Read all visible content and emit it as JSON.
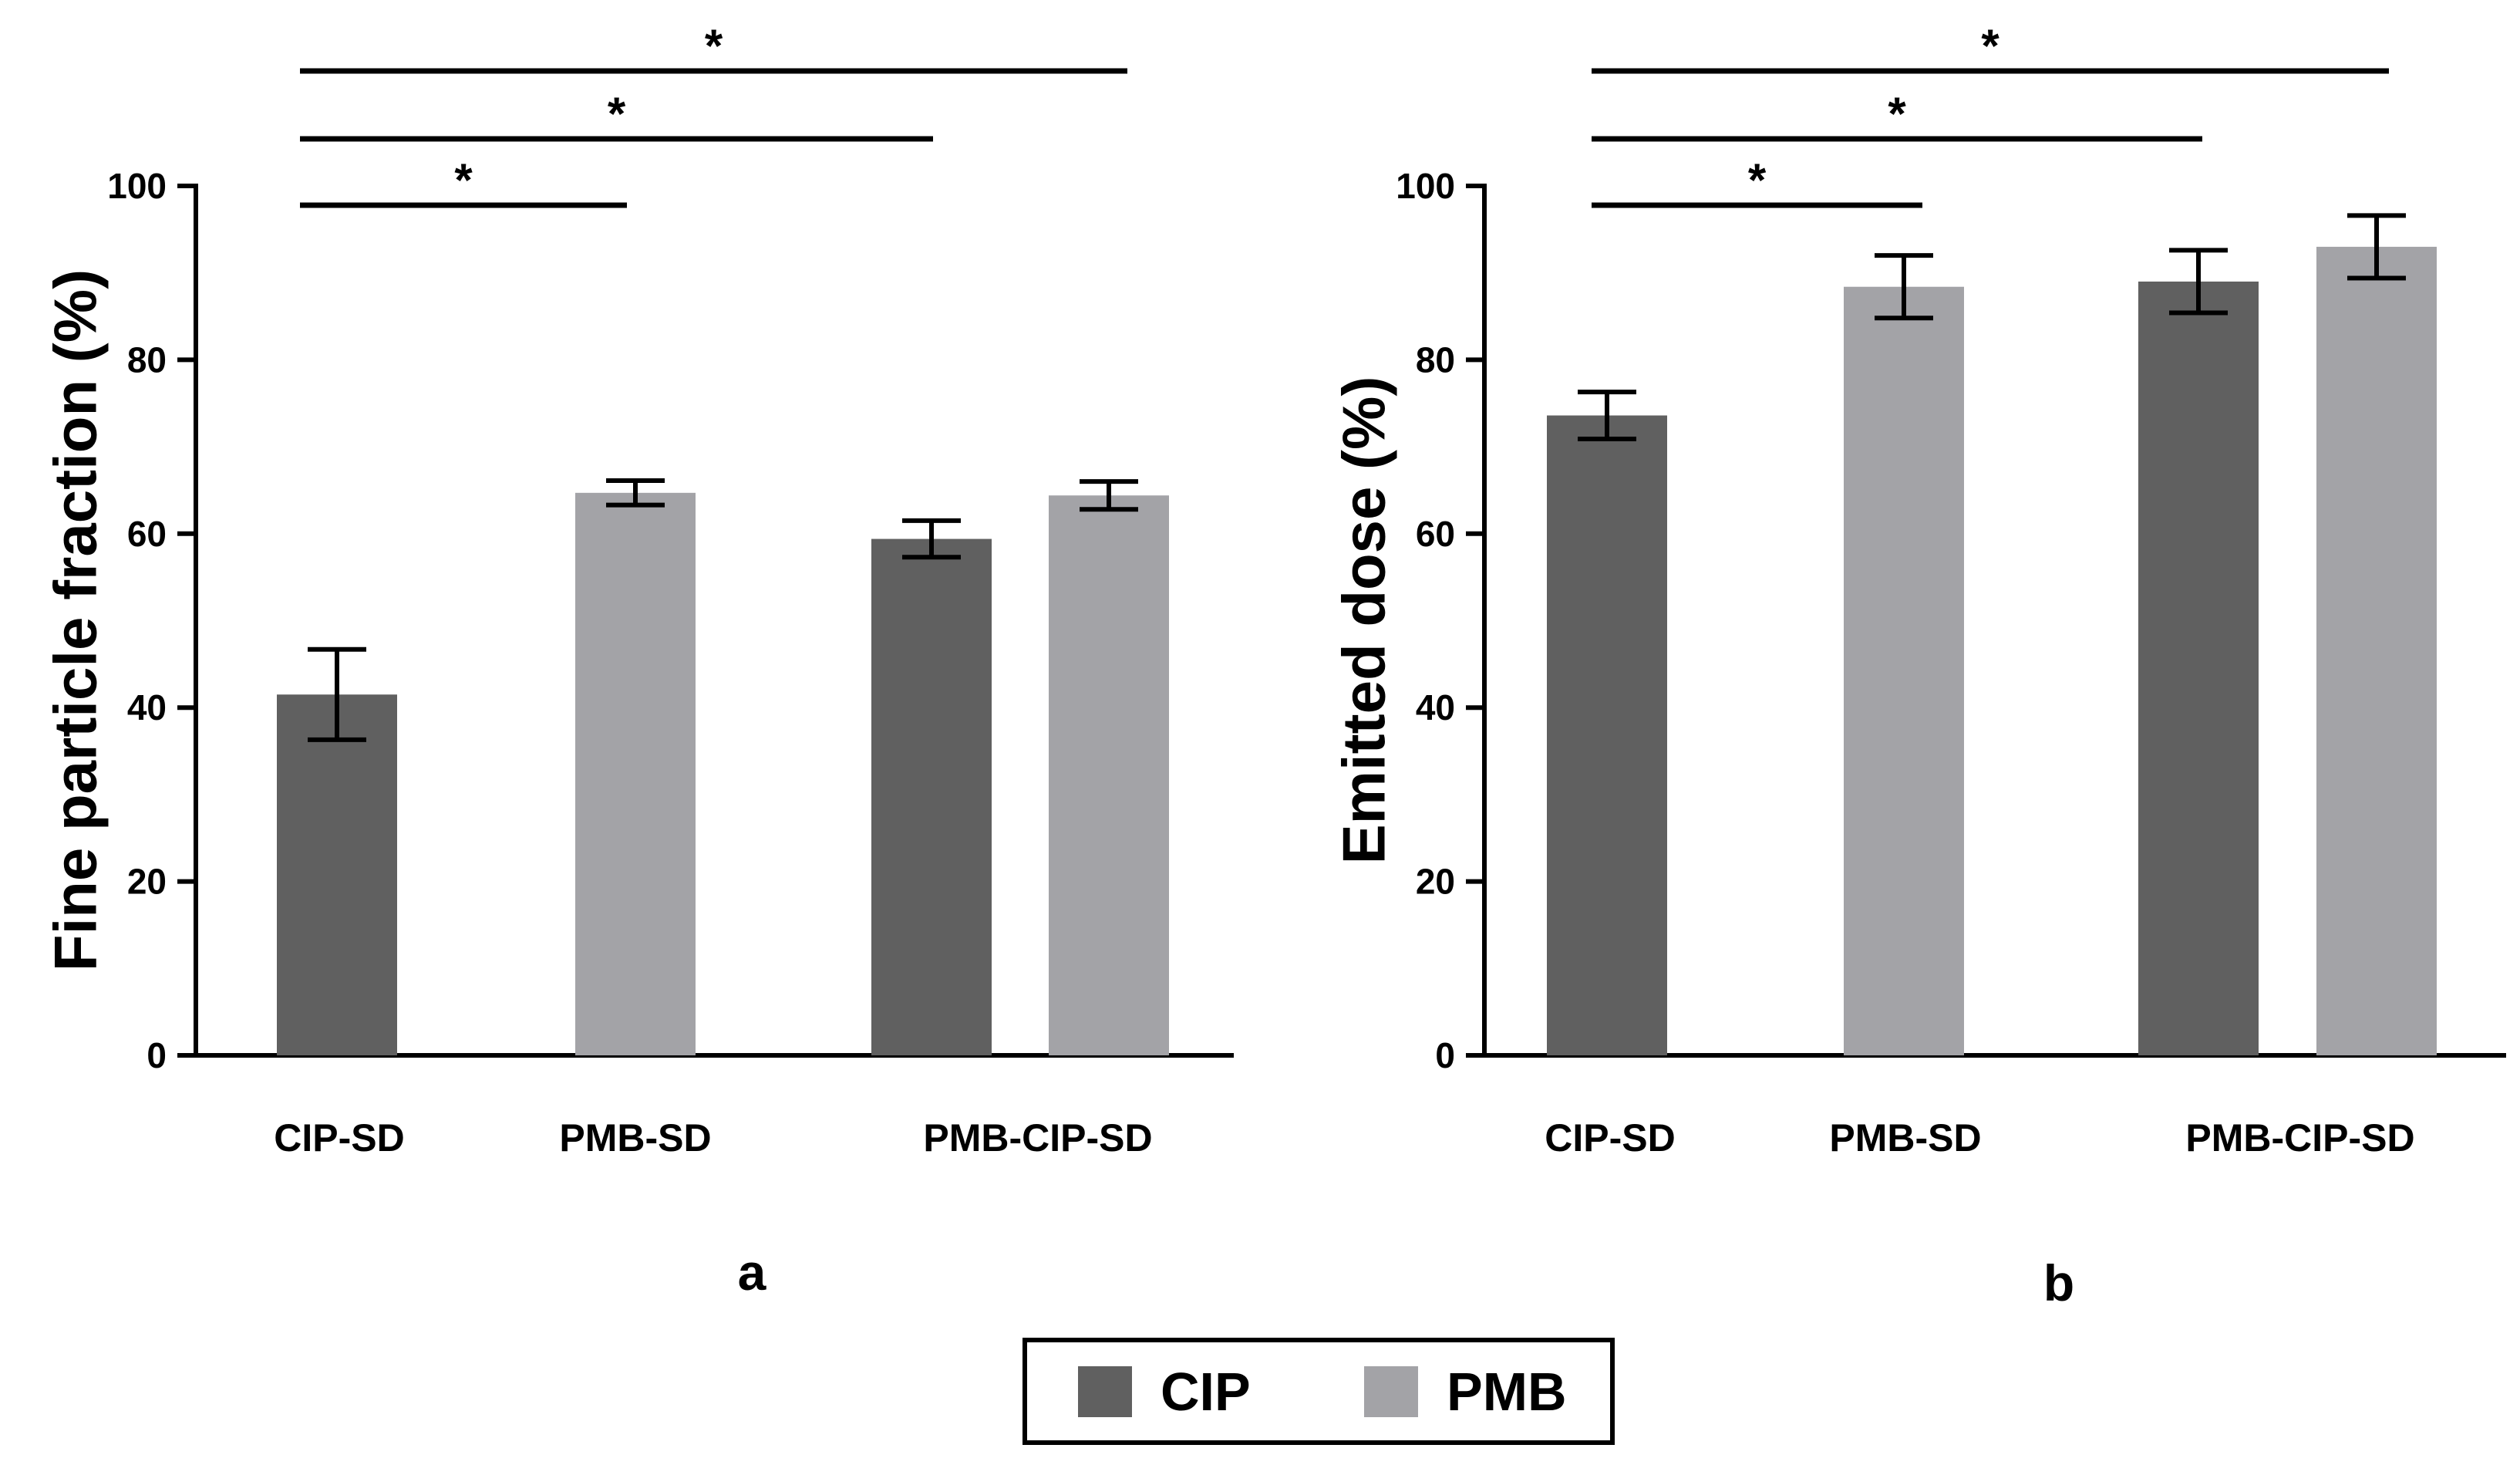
{
  "colors": {
    "CIP": "#606060",
    "PMB": "#a3a3a7",
    "axis": "#000000"
  },
  "legend": {
    "placement": "bottom-center",
    "items": [
      "CIP",
      "PMB"
    ]
  },
  "chart_data": [
    {
      "type": "bar",
      "panel_label": "a",
      "ylabel": "Fine particle fraction (%)",
      "xlabel": "",
      "ylim": [
        0,
        100
      ],
      "yticks": [
        0,
        20,
        40,
        60,
        80,
        100
      ],
      "categories": [
        "CIP-SD",
        "PMB-SD",
        "PMB-CIP-SD"
      ],
      "bars": [
        {
          "category": "CIP-SD",
          "series": "CIP",
          "value": 41.5,
          "error": 5.2
        },
        {
          "category": "PMB-SD",
          "series": "PMB",
          "value": 64.7,
          "error": 1.4
        },
        {
          "category": "PMB-CIP-SD",
          "series": "CIP",
          "value": 59.4,
          "error": 2.1
        },
        {
          "category": "PMB-CIP-SD",
          "series": "PMB",
          "value": 64.4,
          "error": 1.6
        }
      ],
      "significance": [
        {
          "from": "CIP-SD",
          "to": "PMB-SD",
          "label": "*"
        },
        {
          "from": "CIP-SD",
          "to": "PMB-CIP-SD (CIP)",
          "label": "*"
        },
        {
          "from": "CIP-SD",
          "to": "PMB-CIP-SD (PMB)",
          "label": "*"
        }
      ]
    },
    {
      "type": "bar",
      "panel_label": "b",
      "ylabel": "Emitted dose (%)",
      "xlabel": "",
      "ylim": [
        0,
        100
      ],
      "yticks": [
        0,
        20,
        40,
        60,
        80,
        100
      ],
      "categories": [
        "CIP-SD",
        "PMB-SD",
        "PMB-CIP-SD"
      ],
      "bars": [
        {
          "category": "CIP-SD",
          "series": "CIP",
          "value": 73.6,
          "error": 2.7
        },
        {
          "category": "PMB-SD",
          "series": "PMB",
          "value": 88.4,
          "error": 3.6
        },
        {
          "category": "PMB-CIP-SD",
          "series": "CIP",
          "value": 89.0,
          "error": 3.6
        },
        {
          "category": "PMB-CIP-SD",
          "series": "PMB",
          "value": 93.0,
          "error": 3.6
        }
      ],
      "significance": [
        {
          "from": "CIP-SD",
          "to": "PMB-SD",
          "label": "*"
        },
        {
          "from": "CIP-SD",
          "to": "PMB-CIP-SD (CIP)",
          "label": "*"
        },
        {
          "from": "CIP-SD",
          "to": "PMB-CIP-SD (PMB)",
          "label": "*"
        }
      ]
    }
  ]
}
